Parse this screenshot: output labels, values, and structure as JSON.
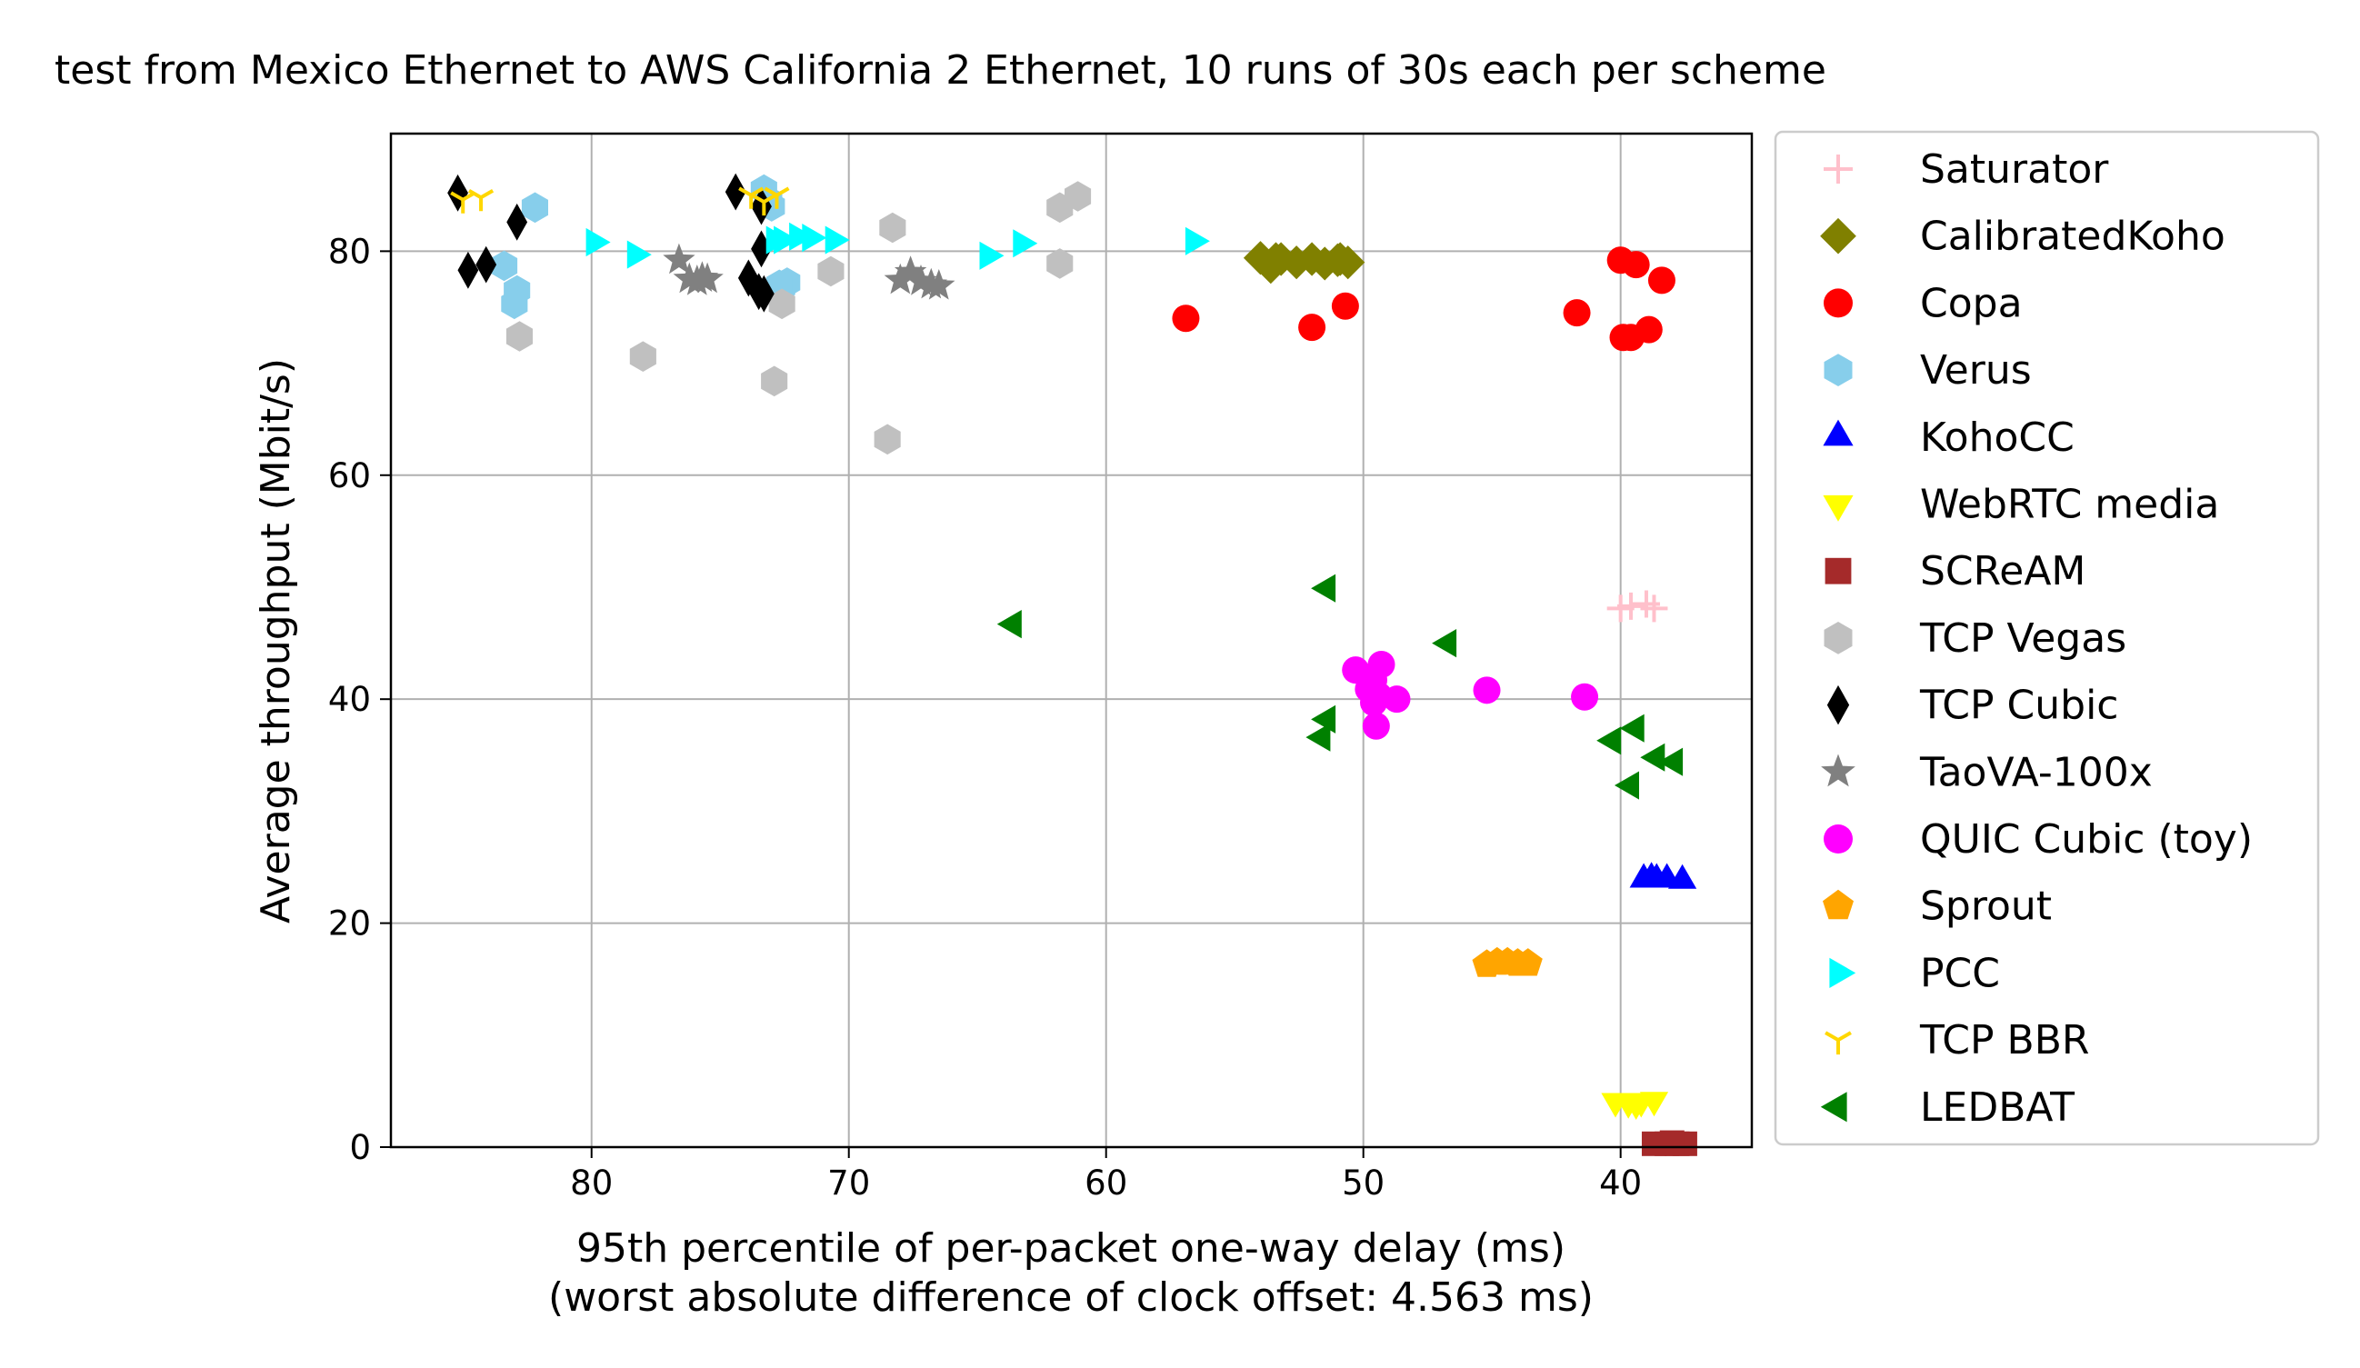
{
  "chart_data": {
    "type": "scatter",
    "title": "test from Mexico Ethernet to AWS California 2 Ethernet, 10 runs of 30s each per scheme",
    "xlabel": "95th percentile of per-packet one-way delay (ms)",
    "xlabel2": "(worst absolute difference of clock offset: 4.563 ms)",
    "ylabel": "Average throughput (Mbit/s)",
    "xlim": [
      87.8,
      34.9
    ],
    "ylim": [
      0,
      90.5
    ],
    "x_inverted": true,
    "xticks": [
      80,
      70,
      60,
      50,
      40
    ],
    "yticks": [
      0,
      20,
      40,
      60,
      80
    ],
    "grid": true,
    "legend_position": "outside-right",
    "series": [
      {
        "name": "Saturator",
        "marker": "plus",
        "color": "#ffc0cb",
        "points": [
          [
            40.0,
            48.1
          ],
          [
            39.6,
            48.3
          ],
          [
            39.0,
            48.5
          ],
          [
            38.7,
            48.1
          ]
        ]
      },
      {
        "name": "CalibratedKoho",
        "marker": "diamond",
        "color": "#808000",
        "points": [
          [
            54.0,
            79.4
          ],
          [
            53.6,
            78.6
          ],
          [
            53.2,
            79.3
          ],
          [
            52.6,
            79.0
          ],
          [
            52.0,
            79.3
          ],
          [
            51.5,
            78.9
          ],
          [
            51.0,
            79.2
          ],
          [
            50.6,
            79.0
          ],
          [
            50.9,
            79.3
          ],
          [
            53.4,
            79.3
          ]
        ]
      },
      {
        "name": "Copa",
        "marker": "circle",
        "color": "#ff0000",
        "points": [
          [
            56.9,
            74.0
          ],
          [
            52.0,
            73.2
          ],
          [
            50.7,
            75.1
          ],
          [
            41.7,
            74.5
          ],
          [
            40.0,
            79.2
          ],
          [
            39.4,
            78.8
          ],
          [
            38.4,
            77.4
          ],
          [
            39.9,
            72.3
          ],
          [
            39.6,
            72.3
          ],
          [
            38.9,
            73.0
          ]
        ]
      },
      {
        "name": "Verus",
        "marker": "hexagon",
        "color": "#87ceeb",
        "points": [
          [
            73.3,
            85.5
          ],
          [
            73.1,
            84.5
          ],
          [
            82.2,
            83.9
          ],
          [
            83.4,
            78.7
          ],
          [
            82.9,
            76.5
          ],
          [
            83.0,
            75.3
          ],
          [
            72.4,
            77.2
          ],
          [
            72.6,
            76.8
          ],
          [
            73.0,
            84.0
          ],
          [
            72.7,
            77.0
          ]
        ]
      },
      {
        "name": "KohoCC",
        "marker": "triangle-up",
        "color": "#0000ff",
        "points": [
          [
            39.1,
            23.9
          ],
          [
            38.6,
            23.9
          ],
          [
            38.2,
            23.9
          ],
          [
            37.6,
            23.8
          ],
          [
            38.8,
            24.0
          ]
        ]
      },
      {
        "name": "WebRTC media",
        "marker": "triangle-down",
        "color": "#ffff00",
        "points": [
          [
            40.2,
            4.1
          ],
          [
            39.7,
            4.0
          ],
          [
            39.2,
            4.1
          ],
          [
            38.7,
            4.2
          ],
          [
            39.4,
            3.9
          ]
        ]
      },
      {
        "name": "SCReAM",
        "marker": "square",
        "color": "#a52a2a",
        "points": [
          [
            38.7,
            0.3
          ],
          [
            38.2,
            0.3
          ],
          [
            37.8,
            0.3
          ],
          [
            37.5,
            0.3
          ],
          [
            38.0,
            0.4
          ]
        ]
      },
      {
        "name": "TCP Vegas",
        "marker": "hexagon",
        "color": "#c0c0c0",
        "points": [
          [
            82.8,
            72.4
          ],
          [
            78.0,
            70.6
          ],
          [
            72.9,
            68.4
          ],
          [
            72.6,
            75.3
          ],
          [
            70.7,
            78.2
          ],
          [
            68.5,
            63.2
          ],
          [
            68.3,
            82.1
          ],
          [
            61.8,
            78.9
          ],
          [
            61.8,
            83.9
          ],
          [
            61.1,
            84.9
          ]
        ]
      },
      {
        "name": "TCP Cubic",
        "marker": "thin-diamond",
        "color": "#000000",
        "points": [
          [
            85.2,
            85.2
          ],
          [
            84.8,
            78.3
          ],
          [
            84.1,
            78.8
          ],
          [
            82.9,
            82.6
          ],
          [
            74.4,
            85.3
          ],
          [
            73.9,
            77.6
          ],
          [
            73.5,
            76.4
          ],
          [
            73.4,
            84.0
          ],
          [
            73.4,
            80.2
          ],
          [
            73.3,
            76.2
          ]
        ]
      },
      {
        "name": "TaoVA-100x",
        "marker": "star",
        "color": "#808080",
        "points": [
          [
            76.6,
            79.2
          ],
          [
            76.2,
            77.5
          ],
          [
            75.9,
            77.3
          ],
          [
            75.5,
            77.5
          ],
          [
            68.0,
            77.4
          ],
          [
            67.6,
            78.1
          ],
          [
            66.8,
            77.0
          ],
          [
            66.5,
            76.9
          ],
          [
            75.7,
            77.6
          ],
          [
            67.2,
            77.3
          ]
        ]
      },
      {
        "name": "QUIC Cubic (toy)",
        "marker": "circle",
        "color": "#ff00ff",
        "points": [
          [
            50.3,
            42.6
          ],
          [
            49.6,
            41.7
          ],
          [
            49.3,
            43.1
          ],
          [
            49.6,
            39.7
          ],
          [
            49.5,
            37.6
          ],
          [
            48.7,
            40.0
          ],
          [
            49.4,
            40.3
          ],
          [
            45.2,
            40.8
          ],
          [
            41.4,
            40.2
          ],
          [
            49.8,
            40.9
          ]
        ]
      },
      {
        "name": "Sprout",
        "marker": "pentagon",
        "color": "#ffa500",
        "points": [
          [
            45.2,
            16.3
          ],
          [
            44.8,
            16.5
          ],
          [
            44.4,
            16.5
          ],
          [
            44.0,
            16.4
          ],
          [
            43.6,
            16.4
          ]
        ]
      },
      {
        "name": "PCC",
        "marker": "triangle-right",
        "color": "#00ffff",
        "points": [
          [
            79.9,
            80.8
          ],
          [
            78.3,
            79.7
          ],
          [
            72.9,
            81.0
          ],
          [
            72.0,
            81.3
          ],
          [
            70.6,
            81.0
          ],
          [
            64.6,
            79.6
          ],
          [
            63.3,
            80.7
          ],
          [
            56.6,
            80.9
          ],
          [
            72.6,
            81.0
          ],
          [
            71.5,
            81.2
          ]
        ]
      },
      {
        "name": "TCP BBR",
        "marker": "tri-down",
        "color": "#ffd700",
        "points": [
          [
            85.0,
            84.6
          ],
          [
            84.3,
            84.8
          ],
          [
            73.8,
            85.0
          ],
          [
            73.3,
            84.4
          ],
          [
            72.8,
            85.0
          ]
        ]
      },
      {
        "name": "LEDBAT",
        "marker": "triangle-left",
        "color": "#008000",
        "points": [
          [
            63.6,
            46.7
          ],
          [
            51.4,
            49.9
          ],
          [
            51.4,
            38.2
          ],
          [
            51.6,
            36.6
          ],
          [
            46.7,
            45.0
          ],
          [
            39.6,
            32.3
          ],
          [
            40.3,
            36.3
          ],
          [
            39.4,
            37.4
          ],
          [
            38.6,
            34.8
          ],
          [
            37.9,
            34.4
          ]
        ]
      }
    ]
  }
}
